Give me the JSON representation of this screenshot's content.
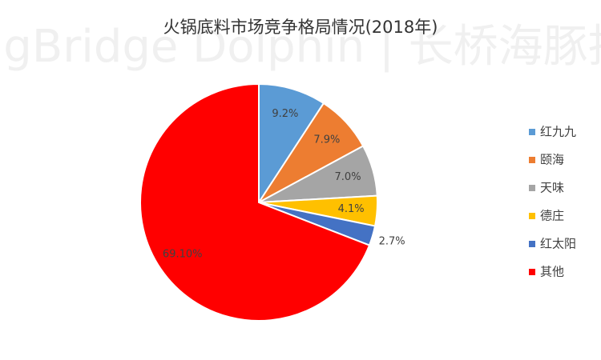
{
  "chart_data": {
    "type": "pie",
    "title": "火锅底料市场竞争格局情况(2018年)",
    "watermark": "LongBridge Dolphin | 长桥海豚投研",
    "categories": [
      "红九九",
      "颐海",
      "天味",
      "德庄",
      "红太阳",
      "其他"
    ],
    "values": [
      9.2,
      7.9,
      7.0,
      4.1,
      2.7,
      69.1
    ],
    "value_labels": [
      "9.2%",
      "7.9%",
      "7.0%",
      "4.1%",
      "2.7%",
      "69.10%"
    ],
    "colors": [
      "#5b9bd5",
      "#ed7d31",
      "#a5a5a5",
      "#ffc000",
      "#4472c4",
      "#ff0000"
    ],
    "legend": "right"
  }
}
